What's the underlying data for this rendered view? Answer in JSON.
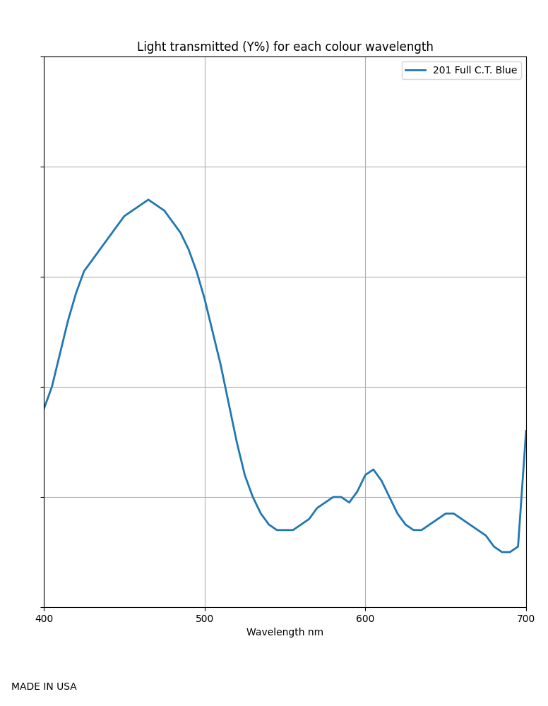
{
  "chart_data": {
    "type": "line",
    "title": "Light transmitted (Y%) for each colour wavelength",
    "x_label": "Wavelength nm",
    "annotations": [
      "MADE IN USA"
    ],
    "x": [
      400,
      405,
      410,
      415,
      420,
      425,
      430,
      435,
      440,
      445,
      450,
      455,
      460,
      465,
      470,
      475,
      480,
      485,
      490,
      495,
      500,
      505,
      510,
      515,
      520,
      525,
      530,
      535,
      540,
      545,
      550,
      555,
      560,
      565,
      570,
      575,
      580,
      585,
      590,
      595,
      600,
      605,
      610,
      615,
      620,
      625,
      630,
      635,
      640,
      645,
      650,
      655,
      660,
      665,
      670,
      675,
      680,
      685,
      690,
      695,
      700
    ],
    "series": [
      {
        "name": "201 Full C.T. Blue",
        "values": [
          36,
          40,
          46,
          52,
          57,
          61,
          63,
          65,
          67,
          69,
          71,
          72,
          73,
          74,
          73,
          72,
          70,
          68,
          65,
          61,
          56,
          50,
          44,
          37,
          30,
          24,
          20,
          17,
          15,
          14,
          14,
          14,
          15,
          16,
          18,
          19,
          20,
          20,
          19,
          21,
          24,
          25,
          23,
          20,
          17,
          15,
          14,
          14,
          15,
          16,
          17,
          17,
          16,
          15,
          14,
          13,
          11,
          10,
          10,
          11,
          32
        ]
      }
    ],
    "xlim": [
      400,
      700
    ],
    "ylim": [
      0,
      100
    ],
    "xticks": [
      400,
      500,
      600,
      700
    ],
    "yticks": [
      0,
      20,
      40,
      60,
      80,
      100
    ],
    "grid": true,
    "legend": "upper right",
    "tick_labels": "x"
  }
}
